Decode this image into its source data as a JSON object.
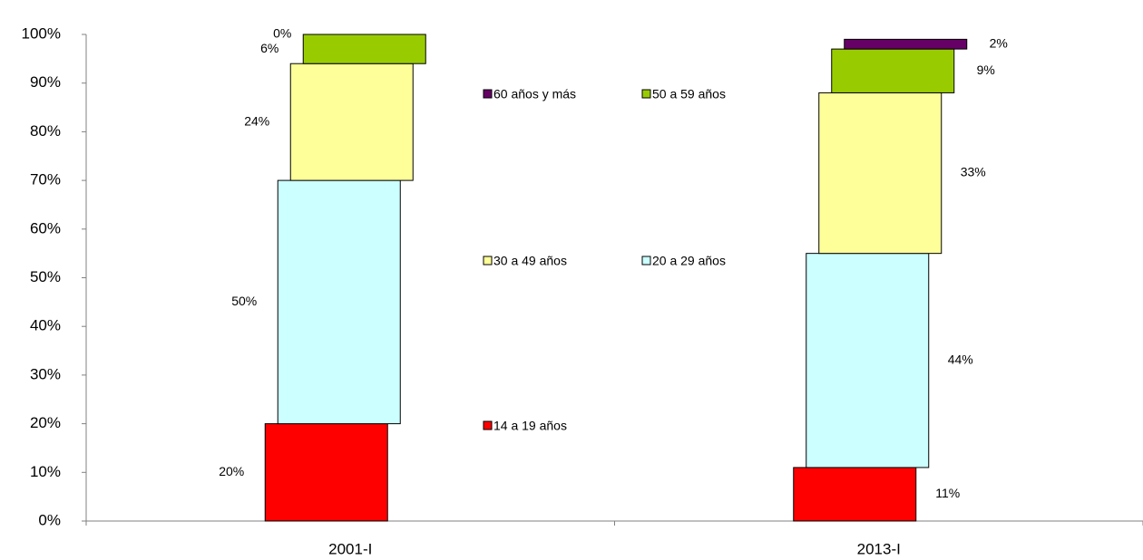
{
  "chart_data": {
    "type": "stacked_bar",
    "categories": [
      "2001-I",
      "2013-I"
    ],
    "series": [
      {
        "name": "14 a 19 años",
        "color": "#ff0000",
        "values": [
          20,
          11
        ],
        "value_labels": [
          "20%",
          "11%"
        ]
      },
      {
        "name": "20 a 29 años",
        "color": "#ccffff",
        "values": [
          50,
          44
        ],
        "value_labels": [
          "50%",
          "44%"
        ]
      },
      {
        "name": "30 a 49 años",
        "color": "#ffff99",
        "values": [
          24,
          33
        ],
        "value_labels": [
          "24%",
          "33%"
        ]
      },
      {
        "name": "50 a 59 años",
        "color": "#99cc00",
        "values": [
          6,
          9
        ],
        "value_labels": [
          "6%",
          "9%"
        ]
      },
      {
        "name": "60 años y más",
        "color": "#660066",
        "values": [
          0,
          2
        ],
        "value_labels": [
          "0%",
          "2%"
        ]
      }
    ],
    "ylim": [
      0,
      100
    ],
    "yticks": [
      {
        "value": 0,
        "label": "0%"
      },
      {
        "value": 10,
        "label": "10%"
      },
      {
        "value": 20,
        "label": "20%"
      },
      {
        "value": 30,
        "label": "30%"
      },
      {
        "value": 40,
        "label": "40%"
      },
      {
        "value": 50,
        "label": "50%"
      },
      {
        "value": 60,
        "label": "60%"
      },
      {
        "value": 70,
        "label": "70%"
      },
      {
        "value": 80,
        "label": "80%"
      },
      {
        "value": 90,
        "label": "90%"
      },
      {
        "value": 100,
        "label": "100%"
      }
    ]
  }
}
